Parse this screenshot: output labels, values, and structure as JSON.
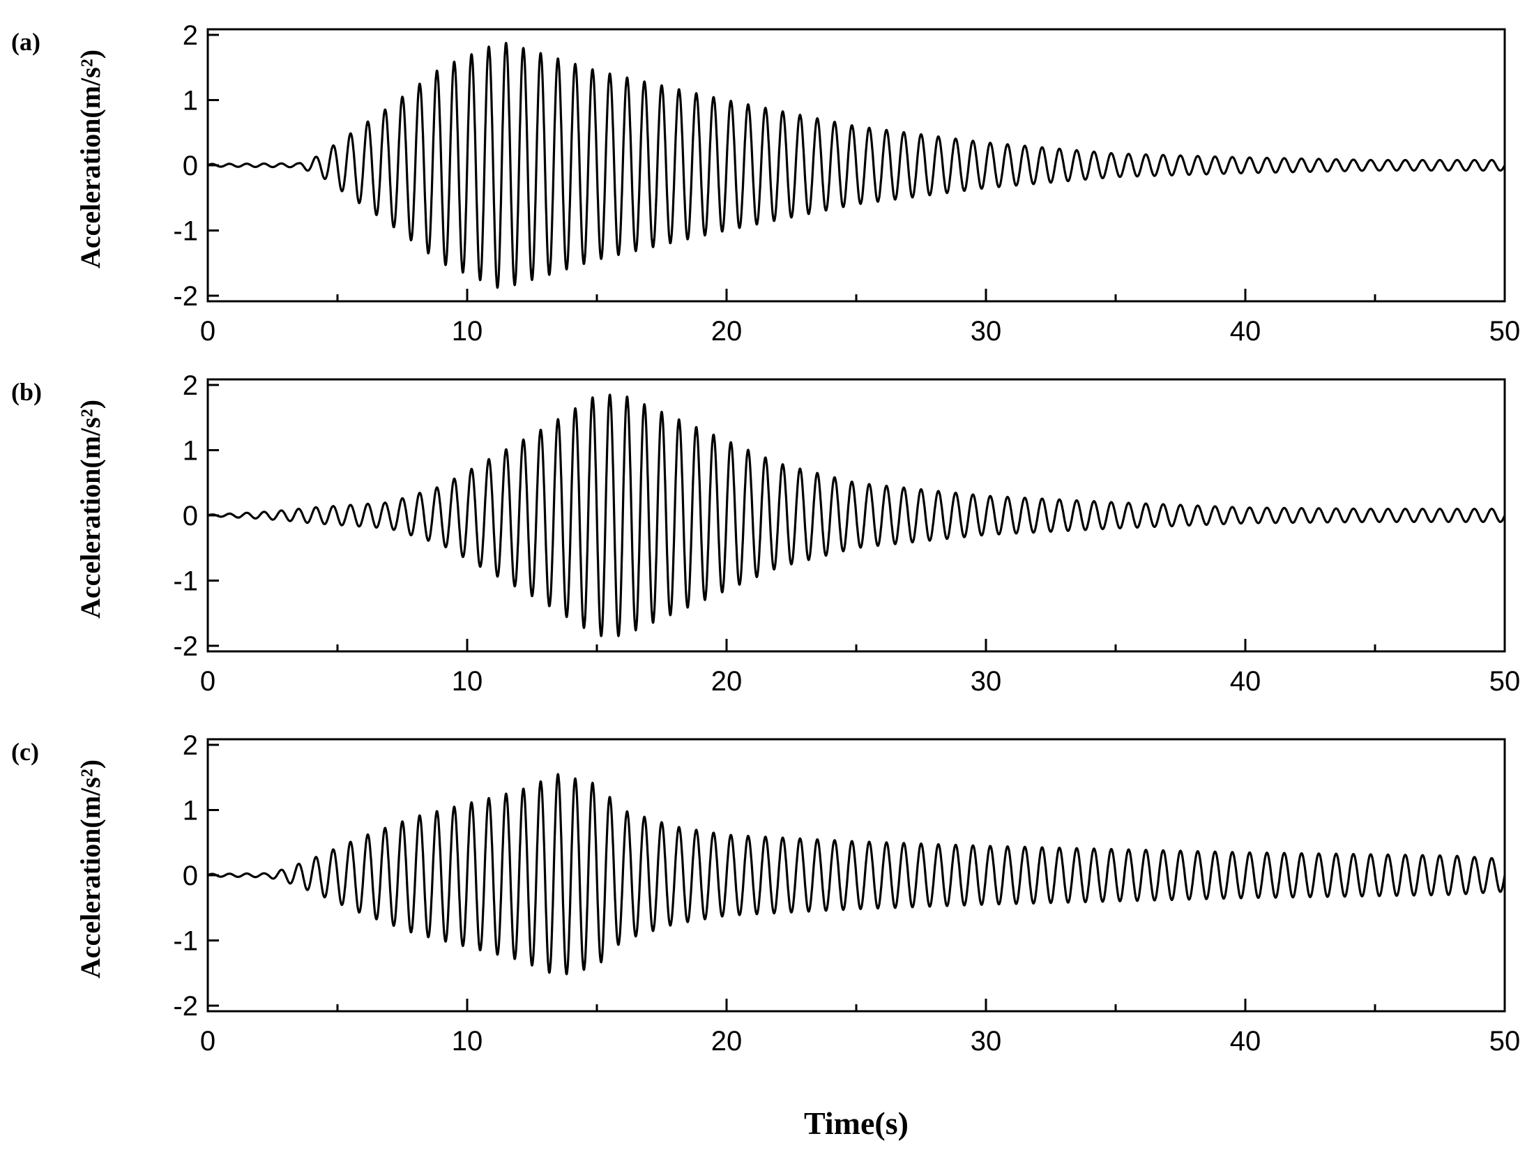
{
  "chart_data": [
    {
      "type": "line",
      "panel_label": "(a)",
      "xlabel": "",
      "ylabel": "Acceleration(m/s²)",
      "xlim": [
        0,
        50
      ],
      "ylim": [
        -2,
        2
      ],
      "xticks": [
        0,
        10,
        20,
        30,
        40,
        50
      ],
      "yticks": [
        -2,
        -1,
        0,
        1,
        2
      ],
      "grid": false,
      "signal": {
        "form": "oscillation",
        "frequency_hz": 1.5,
        "envelope_t": [
          0,
          3.5,
          4.3,
          5,
          7,
          9,
          11.3,
          13,
          15,
          20,
          25,
          30,
          35,
          40,
          45,
          50
        ],
        "envelope_amplitude": [
          0.02,
          0.03,
          0.15,
          0.35,
          0.9,
          1.5,
          1.9,
          1.7,
          1.45,
          1.0,
          0.6,
          0.35,
          0.18,
          0.12,
          0.08,
          0.08
        ]
      }
    },
    {
      "type": "line",
      "panel_label": "(b)",
      "xlabel": "",
      "ylabel": "Acceleration(m/s²)",
      "xlim": [
        0,
        50
      ],
      "ylim": [
        -2,
        2
      ],
      "xticks": [
        0,
        10,
        20,
        30,
        40,
        50
      ],
      "yticks": [
        -2,
        -1,
        0,
        1,
        2
      ],
      "grid": false,
      "signal": {
        "form": "oscillation",
        "frequency_hz": 1.5,
        "envelope_t": [
          0,
          1,
          2,
          3,
          4,
          7,
          9,
          11,
          13,
          15,
          16,
          18,
          20,
          22,
          25,
          30,
          35,
          40,
          45,
          50
        ],
        "envelope_amplitude": [
          0.01,
          0.03,
          0.05,
          0.08,
          0.12,
          0.2,
          0.45,
          0.9,
          1.35,
          1.85,
          1.85,
          1.5,
          1.15,
          0.8,
          0.5,
          0.3,
          0.2,
          0.12,
          0.1,
          0.1
        ]
      }
    },
    {
      "type": "line",
      "panel_label": "(c)",
      "xlabel": "Time(s)",
      "ylabel": "Acceleration(m/s²)",
      "xlim": [
        0,
        50
      ],
      "ylim": [
        -2,
        2
      ],
      "xticks": [
        0,
        10,
        20,
        30,
        40,
        50
      ],
      "yticks": [
        -2,
        -1,
        0,
        1,
        2
      ],
      "grid": false,
      "signal": {
        "form": "oscillation",
        "frequency_hz": 1.5,
        "envelope_t": [
          0,
          2.3,
          3,
          4,
          6,
          8,
          10,
          12,
          13.5,
          15,
          16,
          18,
          20,
          22,
          25,
          30,
          35,
          40,
          45,
          48,
          50
        ],
        "envelope_amplitude": [
          0.02,
          0.03,
          0.1,
          0.25,
          0.6,
          0.9,
          1.1,
          1.3,
          1.55,
          1.4,
          1.0,
          0.75,
          0.62,
          0.58,
          0.52,
          0.45,
          0.4,
          0.35,
          0.32,
          0.3,
          0.25
        ]
      }
    }
  ]
}
